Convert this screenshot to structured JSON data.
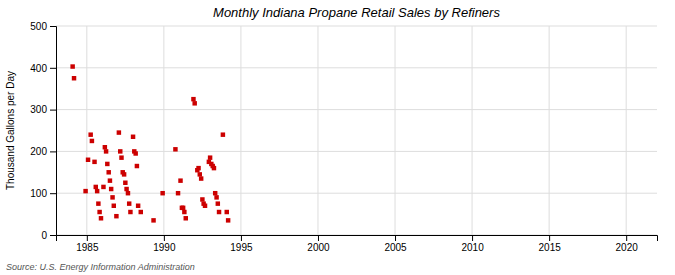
{
  "chart_data": {
    "type": "scatter",
    "title": "Monthly Indiana Propane Retail Sales by Refiners",
    "y_label": "Thousand Gallons per Day",
    "annotations": [
      "Source: U.S. Energy Information Administration"
    ],
    "color": "#cc0000",
    "marker": "square",
    "grid": true,
    "xlim": [
      1983,
      2022
    ],
    "ylim": [
      0,
      500
    ],
    "xticks": [
      1985,
      1990,
      1995,
      2000,
      2005,
      2010,
      2015,
      2020
    ],
    "yticks": [
      0,
      100,
      200,
      300,
      400,
      500
    ],
    "x": [
      1984.08,
      1984.17,
      1984.92,
      1985.08,
      1985.25,
      1985.33,
      1985.5,
      1985.58,
      1985.67,
      1985.75,
      1985.83,
      1985.92,
      1986.08,
      1986.17,
      1986.25,
      1986.33,
      1986.42,
      1986.5,
      1986.58,
      1986.67,
      1986.75,
      1986.92,
      1987.08,
      1987.17,
      1987.25,
      1987.33,
      1987.42,
      1987.5,
      1987.58,
      1987.67,
      1987.75,
      1987.83,
      1988.0,
      1988.08,
      1988.17,
      1988.25,
      1988.33,
      1988.5,
      1989.33,
      1989.92,
      1990.75,
      1990.92,
      1991.08,
      1991.17,
      1991.25,
      1991.33,
      1991.42,
      1991.92,
      1992.0,
      1992.17,
      1992.25,
      1992.33,
      1992.42,
      1992.5,
      1992.58,
      1992.67,
      1992.92,
      1993.0,
      1993.08,
      1993.17,
      1993.25,
      1993.33,
      1993.42,
      1993.5,
      1993.58,
      1993.83,
      1994.08,
      1994.17
    ],
    "values": [
      403,
      375,
      105,
      180,
      240,
      225,
      175,
      115,
      105,
      75,
      55,
      40,
      115,
      210,
      200,
      170,
      150,
      130,
      110,
      90,
      70,
      45,
      245,
      200,
      185,
      150,
      145,
      125,
      110,
      100,
      75,
      55,
      235,
      200,
      195,
      165,
      70,
      55,
      35,
      100,
      205,
      100,
      130,
      65,
      65,
      55,
      40,
      325,
      315,
      155,
      160,
      145,
      135,
      85,
      75,
      70,
      175,
      185,
      170,
      165,
      160,
      100,
      90,
      75,
      55,
      240,
      55,
      35
    ]
  }
}
